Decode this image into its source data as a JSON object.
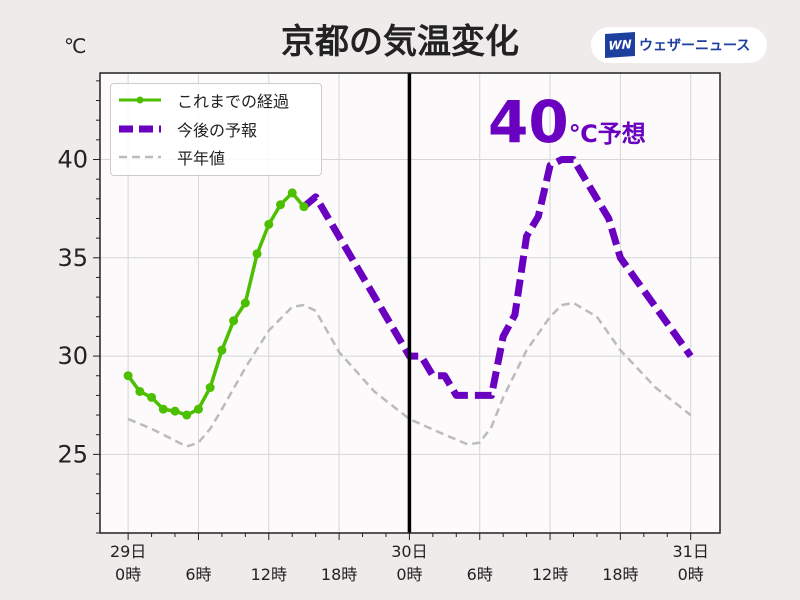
{
  "title": "京都の気温変化",
  "unit_label": "℃",
  "brand": {
    "logo": "WN",
    "name": "ウェザーニュース"
  },
  "annotation": {
    "number": "40",
    "suffix": "℃予想"
  },
  "colors": {
    "observed": "#4cbf00",
    "forecast": "#6a00c0",
    "normal": "#bbbbbb"
  },
  "chart_data": {
    "type": "line",
    "title": "京都の気温変化",
    "ylabel": "℃",
    "xlabel": "",
    "xlim": [
      -2.4,
      50.5
    ],
    "ylim": [
      21,
      44.4
    ],
    "yticks": [
      25,
      30,
      35,
      40
    ],
    "xticks": [
      {
        "x": 0,
        "label": [
          "29日",
          "0時"
        ]
      },
      {
        "x": 6,
        "label": [
          "",
          "6時"
        ]
      },
      {
        "x": 12,
        "label": [
          "",
          "12時"
        ]
      },
      {
        "x": 18,
        "label": [
          "",
          "18時"
        ]
      },
      {
        "x": 24,
        "label": [
          "30日",
          "0時"
        ]
      },
      {
        "x": 30,
        "label": [
          "",
          "6時"
        ]
      },
      {
        "x": 36,
        "label": [
          "",
          "12時"
        ]
      },
      {
        "x": 42,
        "label": [
          "",
          "18時"
        ]
      },
      {
        "x": 48,
        "label": [
          "31日",
          "0時"
        ]
      }
    ],
    "grid": true,
    "now_marker_x": 24,
    "legend_position": "top-left",
    "series": [
      {
        "name": "これまでの経過",
        "style": "solid-markers",
        "x": [
          0,
          1,
          2,
          3,
          4,
          5,
          6,
          7,
          8,
          9,
          10,
          11,
          12,
          13,
          14,
          15
        ],
        "y": [
          29.0,
          28.2,
          27.9,
          27.3,
          27.2,
          27.0,
          27.3,
          28.4,
          30.3,
          31.8,
          32.7,
          35.2,
          36.7,
          37.7,
          38.3,
          37.6
        ]
      },
      {
        "name": "今後の予報",
        "style": "thick-dashed",
        "x": [
          15,
          16,
          24,
          25,
          26,
          27,
          28,
          31,
          32,
          33,
          34,
          35,
          36,
          37,
          38,
          39,
          41,
          42,
          48
        ],
        "y": [
          37.6,
          38.1,
          30.0,
          30.0,
          29.0,
          29.0,
          28.0,
          28.0,
          31.0,
          32.1,
          36.1,
          37.1,
          39.7,
          40.0,
          40.0,
          39.0,
          37.0,
          35.0,
          30.0
        ]
      },
      {
        "name": "平年値",
        "style": "thin-dashed",
        "x": [
          0,
          2,
          4,
          5,
          6,
          7,
          8,
          10,
          12,
          14,
          15,
          16,
          18,
          21,
          24,
          27,
          29,
          30,
          31,
          32,
          34,
          36,
          37,
          38,
          40,
          42,
          45,
          48
        ],
        "y": [
          26.8,
          26.3,
          25.7,
          25.4,
          25.6,
          26.3,
          27.3,
          29.4,
          31.3,
          32.5,
          32.6,
          32.3,
          30.2,
          28.2,
          26.8,
          26.0,
          25.5,
          25.6,
          26.4,
          27.9,
          30.3,
          32.0,
          32.6,
          32.7,
          32.0,
          30.3,
          28.4,
          27.0
        ]
      }
    ]
  }
}
